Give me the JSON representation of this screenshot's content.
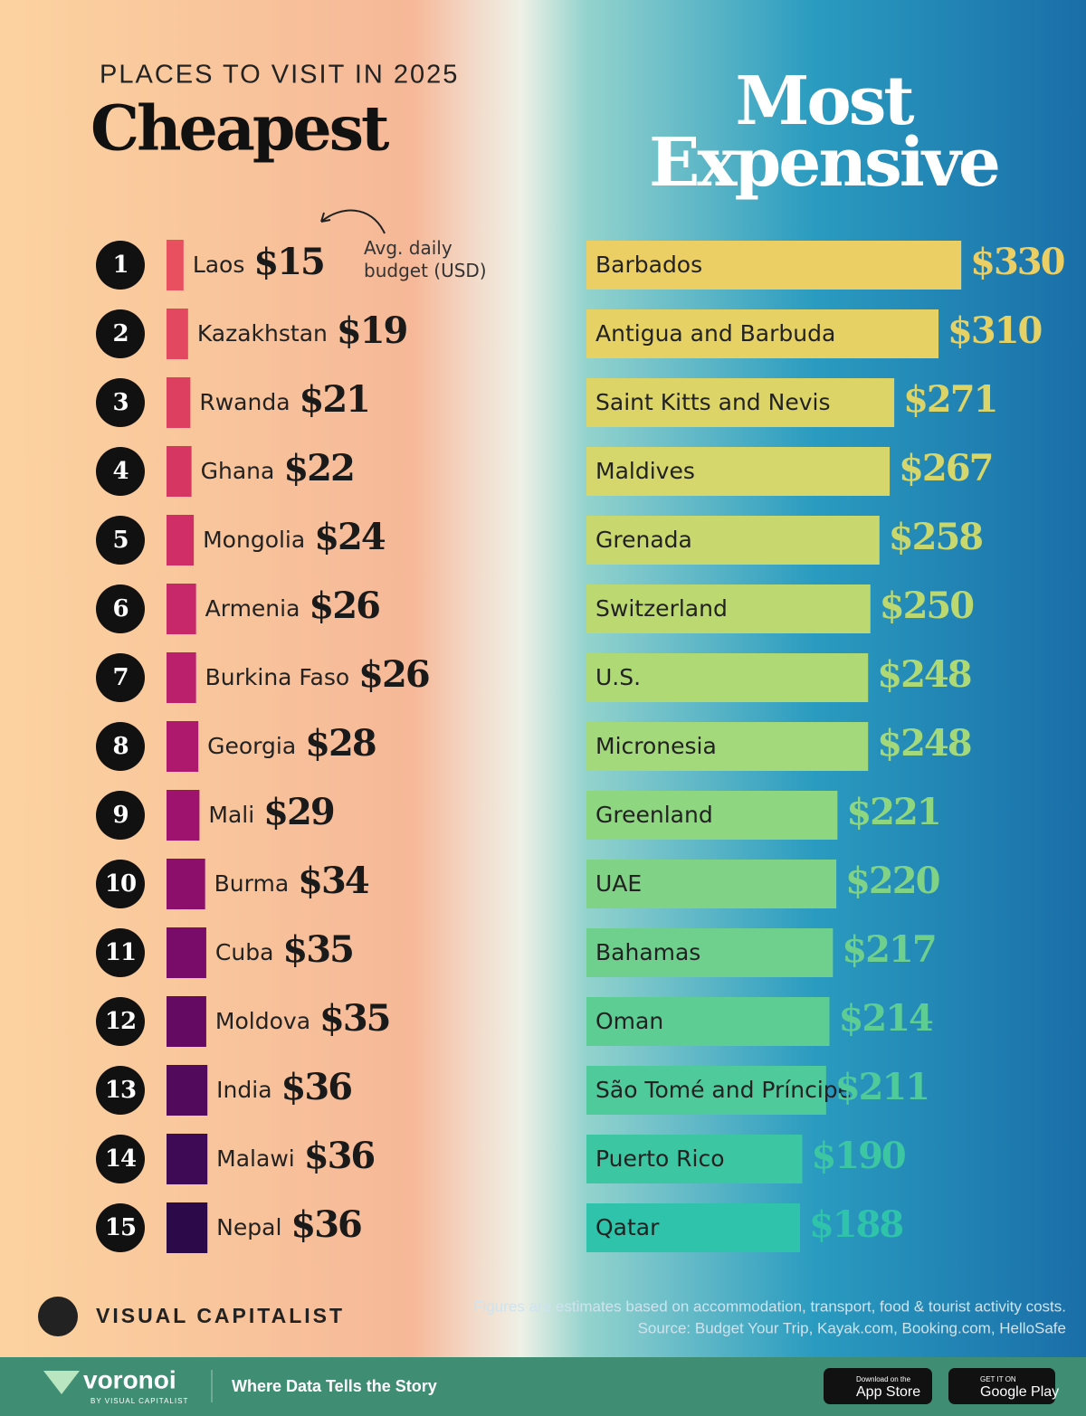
{
  "header": {
    "kicker": "PLACES TO VISIT IN 2025"
  },
  "chart_data": [
    {
      "type": "bar",
      "orientation": "horizontal",
      "title": "Cheapest",
      "annotation": "Avg. daily budget (USD)",
      "ranks": [
        1,
        2,
        3,
        4,
        5,
        6,
        7,
        8,
        9,
        10,
        11,
        12,
        13,
        14,
        15
      ],
      "categories": [
        "Laos",
        "Kazakhstan",
        "Rwanda",
        "Ghana",
        "Mongolia",
        "Armenia",
        "Burkina Faso",
        "Georgia",
        "Mali",
        "Burma",
        "Cuba",
        "Moldova",
        "India",
        "Malawi",
        "Nepal"
      ],
      "values": [
        15,
        19,
        21,
        22,
        24,
        26,
        26,
        28,
        29,
        34,
        35,
        35,
        36,
        36,
        36
      ],
      "value_labels": [
        "$15",
        "$19",
        "$21",
        "$22",
        "$24",
        "$26",
        "$26",
        "$28",
        "$29",
        "$34",
        "$35",
        "$35",
        "$36",
        "$36",
        "$36"
      ],
      "colors": [
        "#e85060",
        "#e2485f",
        "#dc3f60",
        "#d63762",
        "#cf2f66",
        "#c6286a",
        "#bb206c",
        "#ae196d",
        "#9e136d",
        "#8c0f6b",
        "#790c68",
        "#650a62",
        "#520a5c",
        "#3f0a55",
        "#2c0a4a"
      ]
    },
    {
      "type": "bar",
      "orientation": "horizontal",
      "title": "Most Expensive",
      "categories": [
        "Barbados",
        "Antigua and Barbuda",
        "Saint Kitts and Nevis",
        "Maldives",
        "Grenada",
        "Switzerland",
        "U.S.",
        "Micronesia",
        "Greenland",
        "UAE",
        "Bahamas",
        "Oman",
        "São Tomé and Príncipe",
        "Puerto Rico",
        "Qatar"
      ],
      "values": [
        330,
        310,
        271,
        267,
        258,
        250,
        248,
        248,
        221,
        220,
        217,
        214,
        211,
        190,
        188
      ],
      "value_labels": [
        "$330",
        "$310",
        "$271",
        "$267",
        "$258",
        "$250",
        "$248",
        "$248",
        "$221",
        "$220",
        "$217",
        "$214",
        "$211",
        "$190",
        "$188"
      ],
      "colors": [
        "#ebcf65",
        "#e6d165",
        "#ddd468",
        "#d5d66b",
        "#c8d86e",
        "#bcd971",
        "#aed975",
        "#a3d97a",
        "#8fd680",
        "#80d386",
        "#6ed08c",
        "#5ecd93",
        "#4fca9a",
        "#3cc6a2",
        "#2ec3aa"
      ]
    }
  ],
  "footer": {
    "note": "Figures are estimates based on accommodation, transport, food & tourist activity costs.",
    "source": "Source: Budget Your Trip, Kayak.com, Booking.com, HelloSafe",
    "brand": "VISUAL CAPITALIST",
    "app": "voronoi",
    "app_by": "BY VISUAL CAPITALIST",
    "tagline": "Where Data Tells the Story",
    "appstore_small": "Download on the",
    "appstore": "App Store",
    "gplay_small": "GET IT ON",
    "gplay": "Google Play"
  }
}
